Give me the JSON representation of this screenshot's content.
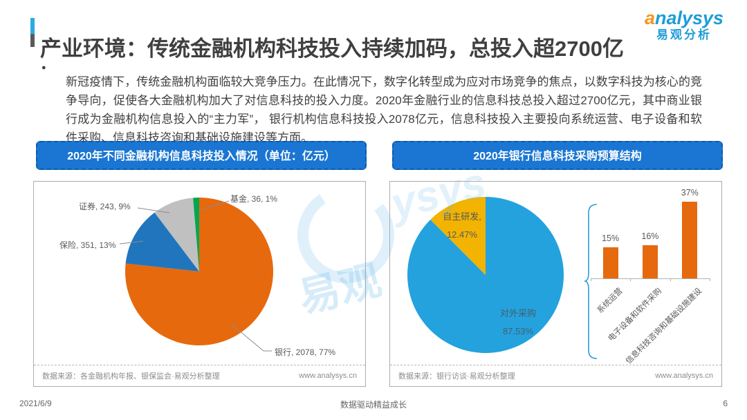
{
  "page": {
    "title": "产业环境：传统金融机构科技投入持续加码，总投入超2700亿",
    "logo": {
      "brand": "analysys",
      "brand_cn": "易观分析"
    },
    "bullet": "●",
    "intro": "新冠疫情下，传统金融机构面临较大竞争压力。在此情况下，数字化转型成为应对市场竞争的焦点，以数字科技为核心的竞争导向，促使各大金融机构加大了对信息科技的投入力度。2020年金融行业的信息科技总投入超过2700亿元，其中商业银行成为金融机构信息投入的“主力军”， 银行机构信息科技投入2078亿元，信息科技投入主要投向系统运营、电子设备和软件采购、信息科技咨询和基础设施建设等方面。",
    "watermark": {
      "swirl_text": "易观",
      "brand_fragment": "ysys"
    },
    "footer": {
      "date": "2021/6/9",
      "slogan": "数据驱动精益成长",
      "page_number": "6"
    }
  },
  "left_panel": {
    "banner": "2020年不同金融机构信息科技投入情况（单位：亿元）",
    "source": "数据来源：各金融机构年报、银保监会·易观分析整理",
    "website": "www.analysys.cn"
  },
  "right_panel": {
    "banner": "2020年银行信息科技采购预算结构",
    "source": "数据来源：银行访谈·易观分析整理",
    "website": "www.analysys.cn"
  },
  "chart_data": [
    {
      "type": "pie",
      "title": "2020年不同金融机构信息科技投入情况",
      "unit": "亿元",
      "labels": [
        "银行",
        "保险",
        "证券",
        "基金"
      ],
      "values": [
        2078,
        351,
        243,
        36
      ],
      "percent_labels": [
        "77%",
        "13%",
        "9%",
        "1%"
      ],
      "data_labels": [
        "银行, 2078, 77%",
        "保险, 351, 13%",
        "证券, 243, 9%",
        "基金, 36, 1%"
      ],
      "colors": [
        "#e6690e",
        "#2075bd",
        "#c0c0c0",
        "#00a651"
      ],
      "start_angle_deg": 0,
      "direction": "clockwise",
      "legend": "none"
    },
    {
      "type": "pie",
      "title": "2020年银行信息科技采购预算结构",
      "labels": [
        "对外采购",
        "自主研发"
      ],
      "values": [
        87.53,
        12.47
      ],
      "colors": [
        "#23a2de",
        "#f2b301"
      ],
      "inner_labels": [
        {
          "line1": "对外采购",
          "line2": "87.53%"
        },
        {
          "line1": "自主研发,",
          "line2": "12.47%"
        }
      ],
      "start_angle_deg": 0,
      "direction": "clockwise",
      "legend": "none"
    },
    {
      "type": "bar",
      "categories": [
        "系统运营",
        "电子设备和软件采购",
        "信息科技咨询和基础设施建设"
      ],
      "values": [
        15,
        16,
        37
      ],
      "data_labels": [
        "15%",
        "16%",
        "37%"
      ],
      "unit": "%",
      "bar_color": "#e6690e",
      "ylim": [
        0,
        40
      ],
      "grid": false
    }
  ]
}
